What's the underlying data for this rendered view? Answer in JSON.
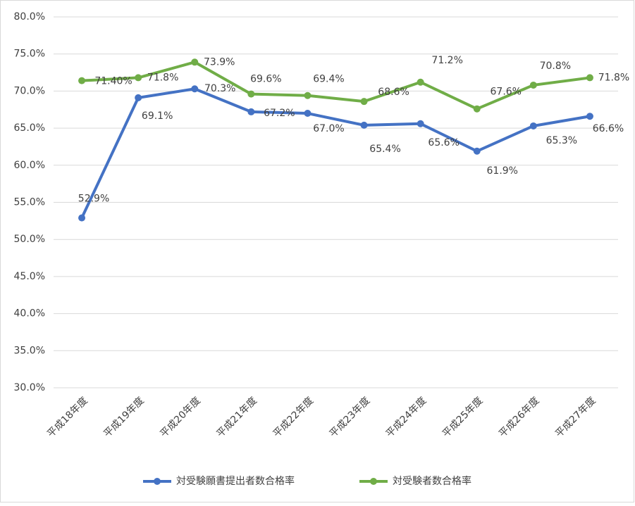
{
  "chart_data": {
    "type": "line",
    "categories": [
      "平成18年度",
      "平成19年度",
      "平成20年度",
      "平成21年度",
      "平成22年度",
      "平成23年度",
      "平成24年度",
      "平成25年度",
      "平成26年度",
      "平成27年度"
    ],
    "series": [
      {
        "name": "対受験願書提出者数合格率",
        "color": "#4472c4",
        "values": [
          52.9,
          69.1,
          70.3,
          67.2,
          67.0,
          65.4,
          65.6,
          61.9,
          65.3,
          66.6
        ],
        "value_labels": [
          "52.9%",
          "69.1%",
          "70.3%",
          "67.2%",
          "67.0%",
          "65.4%",
          "65.6%",
          "61.9%",
          "65.3%",
          "66.6%"
        ]
      },
      {
        "name": "対受験者数合格率",
        "color": "#70ad47",
        "values": [
          71.4,
          71.8,
          73.9,
          69.6,
          69.4,
          68.6,
          71.2,
          67.6,
          70.8,
          71.8
        ],
        "value_labels": [
          "71.40%",
          "71.8%",
          "73.9%",
          "69.6%",
          "69.4%",
          "68.6%",
          "71.2%",
          "67.6%",
          "70.8%",
          "71.8%"
        ]
      }
    ],
    "ylim": [
      30,
      80
    ],
    "yticks": [
      {
        "value": 30,
        "label": "30.0%"
      },
      {
        "value": 35,
        "label": "35.0%"
      },
      {
        "value": 40,
        "label": "40.0%"
      },
      {
        "value": 45,
        "label": "45.0%"
      },
      {
        "value": 50,
        "label": "50.0%"
      },
      {
        "value": 55,
        "label": "55.0%"
      },
      {
        "value": 60,
        "label": "60.0%"
      },
      {
        "value": 65,
        "label": "65.0%"
      },
      {
        "value": 70,
        "label": "70.0%"
      },
      {
        "value": 75,
        "label": "75.0%"
      },
      {
        "value": 80,
        "label": "80.0%"
      }
    ],
    "grid": true,
    "legend": "bottom"
  }
}
